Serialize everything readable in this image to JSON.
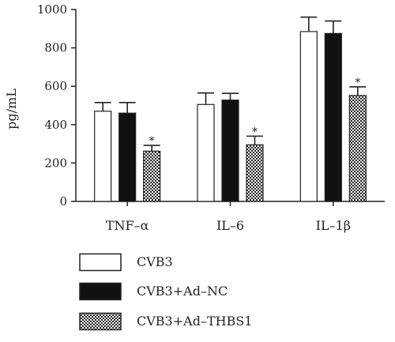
{
  "chart_data": {
    "type": "bar",
    "ylabel": "pg/mL",
    "xlabel": "",
    "ylim": [
      0,
      1000
    ],
    "yticks": [
      0,
      200,
      400,
      600,
      800,
      1000
    ],
    "grid": false,
    "legend_position": "bottom",
    "categories": [
      "TNF–α",
      "IL–6",
      "IL–1β"
    ],
    "series": [
      {
        "name": "CVB3",
        "values": [
          470,
          505,
          885
        ],
        "errors": [
          45,
          60,
          75
        ],
        "fill": "white"
      },
      {
        "name": "CVB3+Ad–NC",
        "values": [
          460,
          528,
          875
        ],
        "errors": [
          55,
          35,
          65
        ],
        "fill": "black"
      },
      {
        "name": "CVB3+Ad–THBS1",
        "values": [
          262,
          295,
          552
        ],
        "errors": [
          30,
          45,
          45
        ],
        "fill": "checkered"
      }
    ],
    "annotations": [
      {
        "series": 2,
        "category": 0,
        "text": "*"
      },
      {
        "series": 2,
        "category": 1,
        "text": "*"
      },
      {
        "series": 2,
        "category": 2,
        "text": "*"
      }
    ]
  }
}
